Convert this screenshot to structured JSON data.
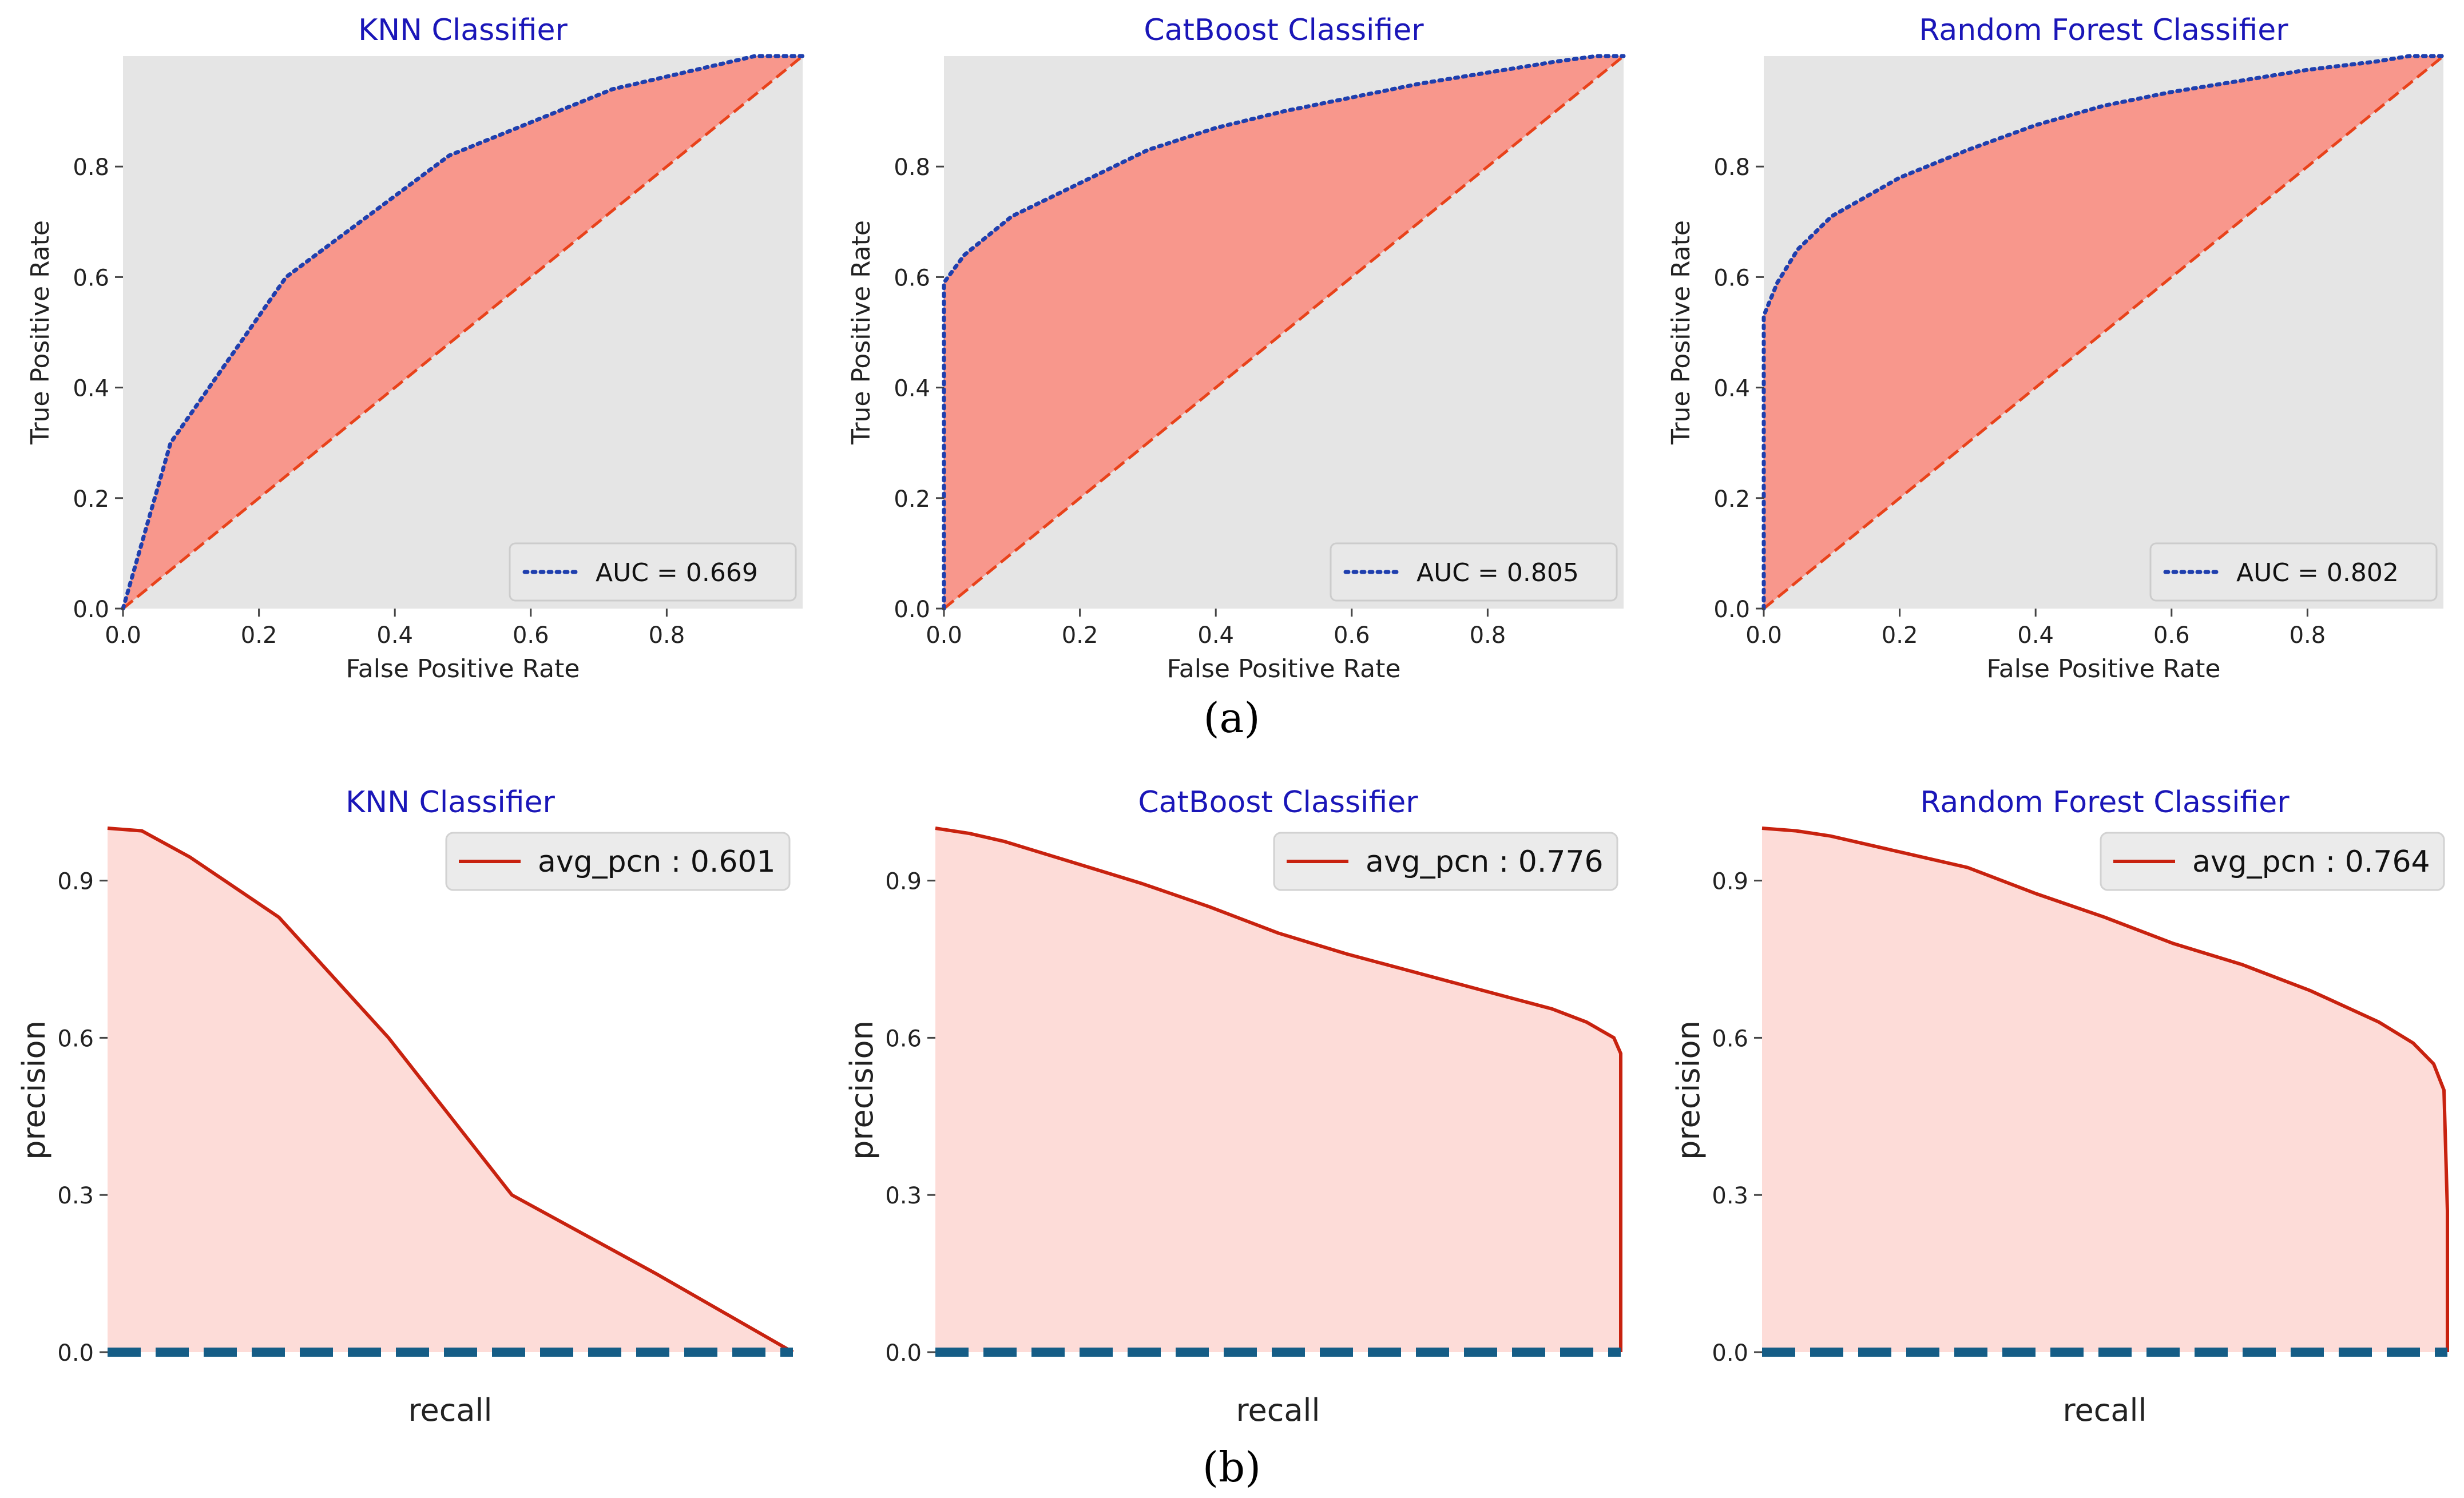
{
  "panel_labels": {
    "a": "(a)",
    "b": "(b)"
  },
  "colors": {
    "axes_bg": "#e5e5e5",
    "roc_fill": "#f8978c",
    "roc_curve": "#1f3fae",
    "roc_diag": "#e8421a",
    "pr_fill": "#fddcd8",
    "pr_line": "#c8220f",
    "pr_baseline": "#155d86",
    "title": "#1a16b8"
  },
  "chart_data": [
    {
      "type": "area",
      "panel": "a",
      "kind": "roc",
      "title": "KNN Classifier",
      "xlabel": "False Positive Rate",
      "ylabel": "True Positive Rate",
      "xlim": [
        0,
        1
      ],
      "ylim": [
        0,
        1
      ],
      "xticks": [
        0.0,
        0.2,
        0.4,
        0.6,
        0.8
      ],
      "xtick_labels": [
        "0.0",
        "0.2",
        "0.4",
        "0.6",
        "0.8"
      ],
      "yticks": [
        0.0,
        0.2,
        0.4,
        0.6,
        0.8
      ],
      "ytick_labels": [
        "0.0",
        "0.2",
        "0.4",
        "0.6",
        "0.8"
      ],
      "grid": false,
      "legend_loc": "lower-right",
      "series": [
        {
          "name": "AUC = 0.669",
          "style": "dotted",
          "x": [
            0,
            0.07,
            0.24,
            0.48,
            0.72,
            0.93,
            1.0
          ],
          "y": [
            0,
            0.3,
            0.6,
            0.82,
            0.94,
            1.0,
            1.0
          ]
        },
        {
          "name": "chance",
          "style": "dashed",
          "x": [
            0,
            1
          ],
          "y": [
            0,
            1
          ]
        }
      ]
    },
    {
      "type": "area",
      "panel": "a",
      "kind": "roc",
      "title": "CatBoost Classifier",
      "xlabel": "False Positive Rate",
      "ylabel": "True Positive Rate",
      "xlim": [
        0,
        1
      ],
      "ylim": [
        0,
        1
      ],
      "xticks": [
        0.0,
        0.2,
        0.4,
        0.6,
        0.8
      ],
      "xtick_labels": [
        "0.0",
        "0.2",
        "0.4",
        "0.6",
        "0.8"
      ],
      "yticks": [
        0.0,
        0.2,
        0.4,
        0.6,
        0.8
      ],
      "ytick_labels": [
        "0.0",
        "0.2",
        "0.4",
        "0.6",
        "0.8"
      ],
      "grid": false,
      "legend_loc": "lower-right",
      "series": [
        {
          "name": "AUC = 0.805",
          "style": "dotted",
          "x": [
            0,
            0.0,
            0.03,
            0.1,
            0.2,
            0.3,
            0.4,
            0.5,
            0.6,
            0.7,
            0.8,
            0.9,
            0.96,
            1.0
          ],
          "y": [
            0,
            0.59,
            0.64,
            0.71,
            0.77,
            0.83,
            0.87,
            0.9,
            0.925,
            0.95,
            0.97,
            0.99,
            1.0,
            1.0
          ]
        },
        {
          "name": "chance",
          "style": "dashed",
          "x": [
            0,
            1
          ],
          "y": [
            0,
            1
          ]
        }
      ]
    },
    {
      "type": "area",
      "panel": "a",
      "kind": "roc",
      "title": "Random Forest Classifier",
      "xlabel": "False Positive Rate",
      "ylabel": "True Positive Rate",
      "xlim": [
        0,
        1
      ],
      "ylim": [
        0,
        1
      ],
      "xticks": [
        0.0,
        0.2,
        0.4,
        0.6,
        0.8
      ],
      "xtick_labels": [
        "0.0",
        "0.2",
        "0.4",
        "0.6",
        "0.8"
      ],
      "yticks": [
        0.0,
        0.2,
        0.4,
        0.6,
        0.8
      ],
      "ytick_labels": [
        "0.0",
        "0.2",
        "0.4",
        "0.6",
        "0.8"
      ],
      "grid": false,
      "legend_loc": "lower-right",
      "series": [
        {
          "name": "AUC = 0.802",
          "style": "dotted",
          "x": [
            0,
            0.0,
            0.02,
            0.05,
            0.1,
            0.2,
            0.3,
            0.4,
            0.5,
            0.6,
            0.7,
            0.8,
            0.9,
            0.95,
            1.0
          ],
          "y": [
            0,
            0.53,
            0.59,
            0.65,
            0.71,
            0.78,
            0.83,
            0.875,
            0.91,
            0.935,
            0.955,
            0.975,
            0.99,
            1.0,
            1.0
          ]
        },
        {
          "name": "chance",
          "style": "dashed",
          "x": [
            0,
            1
          ],
          "y": [
            0,
            1
          ]
        }
      ]
    },
    {
      "type": "area",
      "panel": "b",
      "kind": "pr",
      "title": "KNN Classifier",
      "xlabel": "recall",
      "ylabel": "precision",
      "xlim": [
        0,
        1
      ],
      "ylim": [
        0,
        1
      ],
      "xticks": [],
      "xtick_labels": [],
      "yticks": [
        0.0,
        0.3,
        0.6,
        0.9
      ],
      "ytick_labels": [
        "0.0",
        "0.3",
        "0.6",
        "0.9"
      ],
      "grid": false,
      "legend_loc": "top-right",
      "series": [
        {
          "name": "avg_pcn : 0.601",
          "style": "solid",
          "x": [
            0,
            0.05,
            0.12,
            0.25,
            0.41,
            0.59,
            0.8,
            1.0
          ],
          "y": [
            1.0,
            0.995,
            0.945,
            0.83,
            0.6,
            0.3,
            0.15,
            0.0
          ]
        },
        {
          "name": "baseline",
          "style": "dashed",
          "x": [
            0,
            1
          ],
          "y": [
            0.0,
            0.0
          ]
        }
      ]
    },
    {
      "type": "area",
      "panel": "b",
      "kind": "pr",
      "title": "CatBoost Classifier",
      "xlabel": "recall",
      "ylabel": "precision",
      "xlim": [
        0,
        1
      ],
      "ylim": [
        0,
        1
      ],
      "xticks": [],
      "xtick_labels": [],
      "yticks": [
        0.0,
        0.3,
        0.6,
        0.9
      ],
      "ytick_labels": [
        "0.0",
        "0.3",
        "0.6",
        "0.9"
      ],
      "grid": false,
      "legend_loc": "top-right",
      "series": [
        {
          "name": "avg_pcn : 0.776",
          "style": "solid",
          "x": [
            0,
            0.05,
            0.1,
            0.2,
            0.3,
            0.4,
            0.5,
            0.6,
            0.7,
            0.8,
            0.9,
            0.95,
            0.99,
            1.0,
            1.0
          ],
          "y": [
            1.0,
            0.99,
            0.975,
            0.935,
            0.895,
            0.85,
            0.8,
            0.76,
            0.725,
            0.69,
            0.655,
            0.63,
            0.6,
            0.57,
            0.0
          ]
        },
        {
          "name": "baseline",
          "style": "dashed",
          "x": [
            0,
            1
          ],
          "y": [
            0.0,
            0.0
          ]
        }
      ]
    },
    {
      "type": "area",
      "panel": "b",
      "kind": "pr",
      "title": "Random Forest Classifier",
      "xlabel": "recall",
      "ylabel": "precision",
      "xlim": [
        0,
        1
      ],
      "ylim": [
        0,
        1
      ],
      "xticks": [],
      "xtick_labels": [],
      "yticks": [
        0.0,
        0.3,
        0.6,
        0.9
      ],
      "ytick_labels": [
        "0.0",
        "0.3",
        "0.6",
        "0.9"
      ],
      "grid": false,
      "legend_loc": "top-right",
      "series": [
        {
          "name": "avg_pcn : 0.764",
          "style": "solid",
          "x": [
            0,
            0.05,
            0.1,
            0.2,
            0.3,
            0.4,
            0.5,
            0.6,
            0.7,
            0.8,
            0.9,
            0.95,
            0.98,
            0.995,
            1.0,
            1.0
          ],
          "y": [
            1.0,
            0.995,
            0.985,
            0.955,
            0.925,
            0.875,
            0.83,
            0.78,
            0.74,
            0.69,
            0.63,
            0.59,
            0.55,
            0.5,
            0.27,
            0.0
          ]
        },
        {
          "name": "baseline",
          "style": "dashed",
          "x": [
            0,
            1
          ],
          "y": [
            0.0,
            0.0
          ]
        }
      ]
    }
  ]
}
